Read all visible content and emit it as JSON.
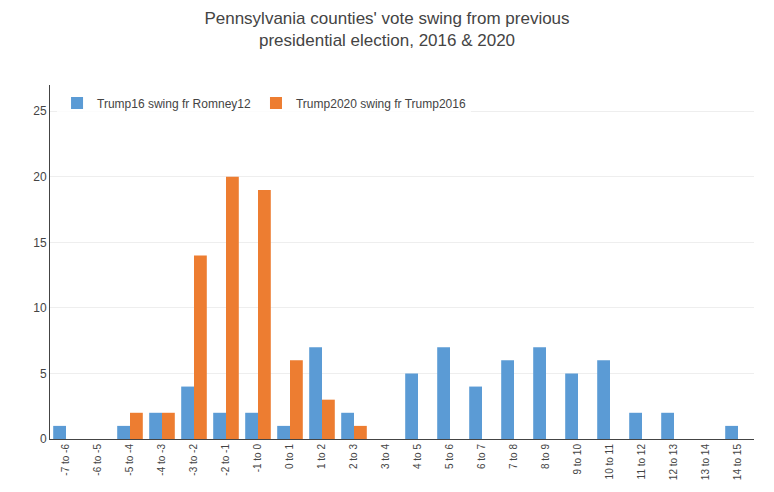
{
  "chart_data": {
    "type": "bar",
    "title": "Pennsylvania counties' vote swing from previous\npresidential election, 2016 & 2020",
    "categories": [
      "-7 to -6",
      "-6 to -5",
      "-5 to -4",
      "-4 to -3",
      "-3 to -2",
      "-2 to -1",
      "-1 to 0",
      "0 to 1",
      "1 to 2",
      "2 to 3",
      "3 to 4",
      "4 to 5",
      "5 to 6",
      "6 to 7",
      "7 to 8",
      "8 to 9",
      "9 to 10",
      "10 to 11",
      "11 to 12",
      "12 to 13",
      "13 to 14",
      "14 to 15"
    ],
    "series": [
      {
        "name": "Trump16 swing fr Romney12",
        "color": "#5B9BD5",
        "values": [
          1,
          0,
          1,
          2,
          4,
          2,
          2,
          1,
          7,
          2,
          0,
          5,
          7,
          4,
          6,
          7,
          5,
          6,
          2,
          2,
          0,
          1
        ]
      },
      {
        "name": "Trump2020 swing fr Trump2016",
        "color": "#ED7D31",
        "values": [
          0,
          0,
          2,
          2,
          14,
          20,
          19,
          6,
          3,
          1,
          0,
          0,
          0,
          0,
          0,
          0,
          0,
          0,
          0,
          0,
          0,
          0
        ]
      }
    ],
    "ylim": [
      0,
      27
    ],
    "yticks": [
      0,
      5,
      10,
      15,
      20,
      25
    ],
    "grid": true,
    "legend": "upper left"
  }
}
